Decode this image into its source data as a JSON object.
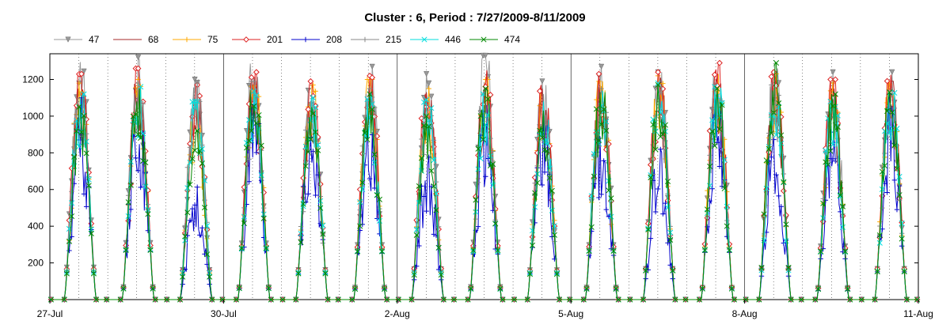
{
  "chart_data": {
    "type": "line",
    "title": "Cluster : 6, Period : 7/27/2009-8/11/2009",
    "xlabel": "",
    "ylabel": "",
    "xlim": [
      "7/27/2009",
      "8/11/2009"
    ],
    "ylim": [
      0,
      1340
    ],
    "grid": "vertical dotted lines at 12:00, solid lines at 3-day ticks",
    "legend": "top",
    "x_ticks": [
      "27-Jul",
      "30-Jul",
      "2-Aug",
      "5-Aug",
      "8-Aug",
      "11-Aug"
    ],
    "y_ticks": [
      200,
      400,
      600,
      800,
      1000,
      1200
    ],
    "x": [
      "7/27",
      "7/28",
      "7/29",
      "7/30",
      "7/31",
      "8/1",
      "8/2",
      "8/3",
      "8/4",
      "8/5",
      "8/6",
      "8/7",
      "8/8",
      "8/9",
      "8/10"
    ],
    "series": [
      {
        "name": "47",
        "color": "#999999",
        "marker": "triangle-down",
        "values": [
          1300,
          1320,
          1200,
          1310,
          1200,
          1270,
          1230,
          1330,
          1190,
          1270,
          1240,
          1250,
          1260,
          1240,
          1240
        ]
      },
      {
        "name": "68",
        "color": "#a52a2a",
        "marker": "none",
        "values": [
          1150,
          1210,
          1050,
          1210,
          1150,
          1180,
          1130,
          1180,
          1150,
          1180,
          1210,
          1200,
          1210,
          1150,
          1190
        ]
      },
      {
        "name": "75",
        "color": "#ffaa00",
        "marker": "plus",
        "values": [
          1180,
          1200,
          1070,
          1230,
          1170,
          1200,
          1150,
          1200,
          1160,
          1190,
          1220,
          1230,
          1230,
          1180,
          1200
        ]
      },
      {
        "name": "201",
        "color": "#dd2222",
        "marker": "diamond",
        "values": [
          1230,
          1260,
          1170,
          1240,
          1190,
          1220,
          1250,
          1250,
          1170,
          1230,
          1240,
          1290,
          1240,
          1200,
          1240
        ]
      },
      {
        "name": "208",
        "color": "#0000cc",
        "marker": "plus",
        "values": [
          1100,
          1130,
          620,
          1140,
          1050,
          1080,
          800,
          1060,
          1050,
          1030,
          840,
          1100,
          950,
          950,
          1120
        ]
      },
      {
        "name": "215",
        "color": "#888888",
        "marker": "plus",
        "values": [
          1160,
          1180,
          1180,
          1190,
          1120,
          1150,
          1120,
          1150,
          1120,
          1150,
          1170,
          1170,
          1170,
          1120,
          1140
        ]
      },
      {
        "name": "446",
        "color": "#00dddd",
        "marker": "x",
        "values": [
          1120,
          1160,
          1080,
          1180,
          1100,
          1130,
          1090,
          1120,
          1080,
          1140,
          1180,
          1160,
          1180,
          1110,
          1140
        ]
      },
      {
        "name": "474",
        "color": "#008800",
        "marker": "x",
        "values": [
          1050,
          1150,
          920,
          1200,
          1050,
          1120,
          1000,
          1150,
          1030,
          1130,
          1170,
          1150,
          1290,
          1120,
          1130
        ]
      }
    ]
  }
}
